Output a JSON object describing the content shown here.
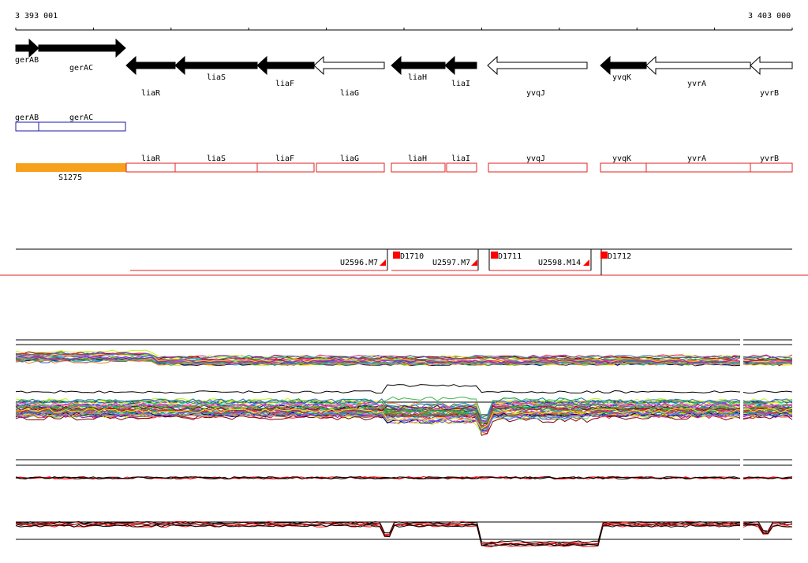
{
  "ruler": {
    "start_label": "3 393 001",
    "end_label": "3 403 000"
  },
  "genes": [
    {
      "id": "gerAB",
      "label": "gerAB",
      "strand": "+",
      "fill": "#000000"
    },
    {
      "id": "gerAC",
      "label": "gerAC",
      "strand": "+",
      "fill": "#000000"
    },
    {
      "id": "liaR",
      "label": "liaR",
      "strand": "-",
      "fill": "#000000"
    },
    {
      "id": "liaS",
      "label": "liaS",
      "strand": "-",
      "fill": "#000000"
    },
    {
      "id": "liaF",
      "label": "liaF",
      "strand": "-",
      "fill": "#000000"
    },
    {
      "id": "liaG",
      "label": "liaG",
      "strand": "-",
      "fill": "#ffffff"
    },
    {
      "id": "liaH",
      "label": "liaH",
      "strand": "-",
      "fill": "#000000"
    },
    {
      "id": "liaI",
      "label": "liaI",
      "strand": "-",
      "fill": "#000000"
    },
    {
      "id": "yvqJ",
      "label": "yvqJ",
      "strand": "-",
      "fill": "#ffffff"
    },
    {
      "id": "yvqK",
      "label": "yvqK",
      "strand": "-",
      "fill": "#000000"
    },
    {
      "id": "yvrA",
      "label": "yvrA",
      "strand": "-",
      "fill": "#ffffff"
    },
    {
      "id": "yvrB",
      "label": "yvrB",
      "strand": "-",
      "fill": "#ffffff"
    }
  ],
  "blue_boxes": [
    {
      "label": "gerAB"
    },
    {
      "label": "gerAC"
    }
  ],
  "orange_segment": {
    "label": "S1275",
    "color": "#f7a01c"
  },
  "red_boxes": [
    {
      "label": "liaR"
    },
    {
      "label": "liaS"
    },
    {
      "label": "liaF"
    },
    {
      "label": "liaG"
    },
    {
      "label": "liaH"
    },
    {
      "label": "liaI"
    },
    {
      "label": "yvqJ"
    },
    {
      "label": "yvqK"
    },
    {
      "label": "yvrA"
    },
    {
      "label": "yvrB"
    }
  ],
  "transcription_units": [
    {
      "label": "U2596.M7"
    },
    {
      "label": "U2597.M7"
    },
    {
      "label": "U2598.M14"
    }
  ],
  "promoters": [
    {
      "label": "D1710"
    },
    {
      "label": "D1711"
    },
    {
      "label": "D1712"
    }
  ],
  "colors": {
    "red_outline": "#e02020",
    "blue_outline": "#1a1aa8",
    "marker_red": "#ff0000",
    "profile_red": "#e00000"
  }
}
